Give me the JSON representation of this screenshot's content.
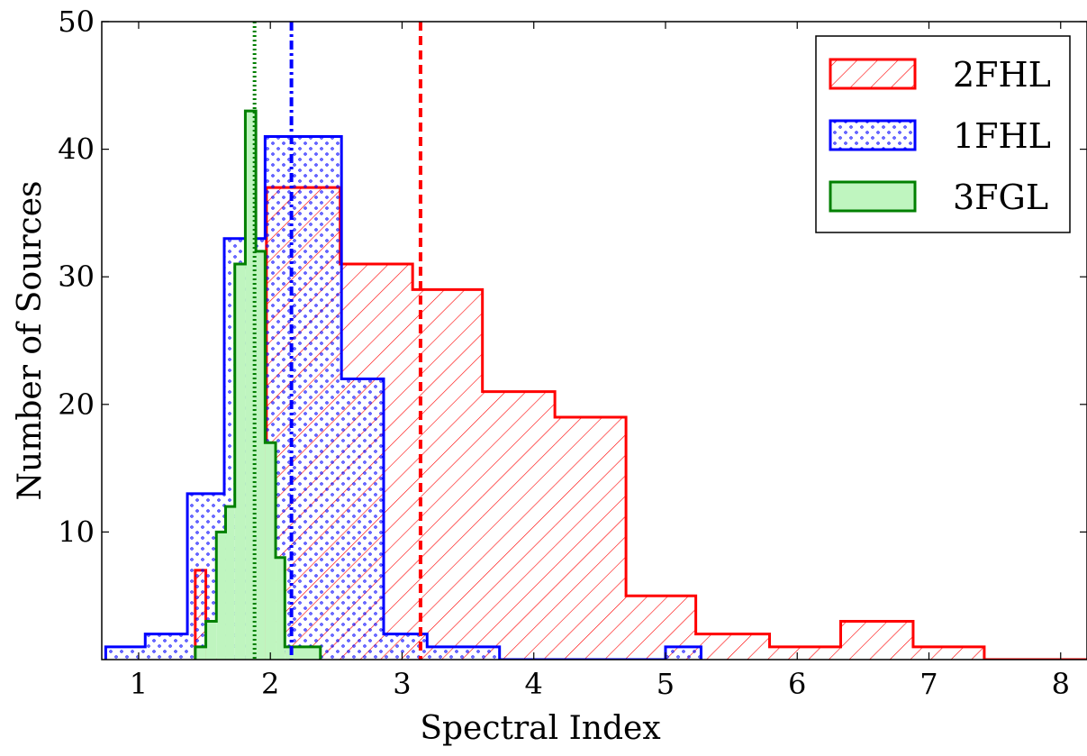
{
  "chart_data": {
    "type": "bar",
    "subtype": "step-histogram",
    "xlabel": "Spectral Index",
    "ylabel": "Number of Sources",
    "xlim": [
      0.72,
      8.2
    ],
    "ylim": [
      0,
      50
    ],
    "xticks": [
      1,
      2,
      3,
      4,
      5,
      6,
      7,
      8
    ],
    "yticks": [
      10,
      20,
      30,
      40,
      50
    ],
    "grid": false,
    "legend": {
      "position": "top-right",
      "entries": [
        "2FHL",
        "1FHL",
        "3FGL"
      ]
    },
    "series": [
      {
        "name": "2FHL",
        "color": "#ff0000",
        "fill": "diagonal-hatch",
        "bin_edges": [
          1.43,
          1.51,
          1.97,
          2.53,
          2.98,
          3.08,
          3.61,
          4.16,
          4.7,
          5.23,
          5.79,
          6.33,
          6.88,
          7.42,
          8.2
        ],
        "values": [
          7,
          0,
          37,
          31,
          31,
          29,
          21,
          19,
          5,
          2,
          1,
          3,
          1,
          0
        ],
        "mean_line": 3.14,
        "mean_line_style": "dashed"
      },
      {
        "name": "1FHL",
        "color": "#0000ff",
        "fill": "dot-hatch",
        "bin_edges": [
          0.75,
          1.05,
          1.37,
          1.65,
          1.96,
          2.54,
          2.86,
          3.19,
          3.74,
          5.0,
          5.27
        ],
        "values": [
          1,
          2,
          13,
          33,
          41,
          22,
          2,
          1,
          0,
          1
        ],
        "mean_line": 2.16,
        "mean_line_style": "dash-dot"
      },
      {
        "name": "3FGL",
        "color": "#008000",
        "fill_color": "#bff5bf",
        "bin_edges": [
          1.43,
          1.51,
          1.59,
          1.66,
          1.73,
          1.81,
          1.89,
          1.96,
          2.04,
          2.11,
          2.19,
          2.38
        ],
        "values": [
          1,
          3,
          10,
          12,
          31,
          43,
          32,
          17,
          8,
          1,
          1
        ],
        "mean_line": 1.88,
        "mean_line_style": "dotted"
      }
    ]
  }
}
